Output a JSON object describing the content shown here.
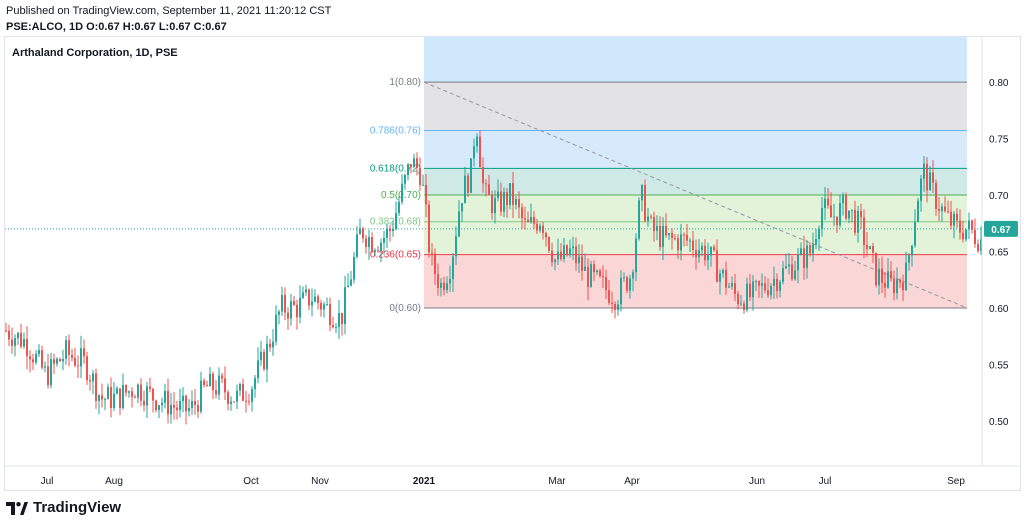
{
  "header": {
    "published": "Published on TradingView.com, September 11, 2021 11:20:12 CST",
    "symbol_line": "PSE:ALCO, 1D O:0.67 H:0.67 L:0.67 C:0.67"
  },
  "footer": {
    "brand": "TradingView"
  },
  "colors": {
    "up": "#26a69a",
    "down": "#ef5350",
    "fib_top_band": "#cfe8fb",
    "fib_grey": "#e3e3e5",
    "fib_blue": "#d6eafb",
    "fib_teal": "#cfeae6",
    "fib_green": "#e2f3da",
    "fib_red": "#fbd6d6",
    "price_badge": "#26a69a"
  },
  "chart_data": {
    "type": "candlestick",
    "title": "Arthaland Corporation, 1D, PSE",
    "ylim": [
      0.46,
      0.84
    ],
    "y_ticks": [
      0.5,
      0.55,
      0.6,
      0.65,
      0.7,
      0.75,
      0.8
    ],
    "x_ticks": [
      {
        "label": "Jul",
        "t": 42
      },
      {
        "label": "Aug",
        "t": 109
      },
      {
        "label": "Oct",
        "t": 246
      },
      {
        "label": "Nov",
        "t": 315
      },
      {
        "label": "2021",
        "t": 419
      },
      {
        "label": "Mar",
        "t": 552
      },
      {
        "label": "Apr",
        "t": 627
      },
      {
        "label": "Jun",
        "t": 752
      },
      {
        "label": "Jul",
        "t": 820
      },
      {
        "label": "Sep",
        "t": 951
      }
    ],
    "last_price": "0.67",
    "last_value": 0.67,
    "fibonacci": {
      "t_start": 419,
      "t_end": 962,
      "levels": [
        {
          "label": "1(0.80)",
          "value": 0.8,
          "color": "#787b86"
        },
        {
          "label": "0.786(0.76)",
          "value": 0.7572,
          "color": "#64b5f6"
        },
        {
          "label": "0.618(0.72)",
          "value": 0.7236,
          "color": "#089981"
        },
        {
          "label": "0.5(0.70)",
          "value": 0.7,
          "color": "#4caf50"
        },
        {
          "label": "0.382(0.68)",
          "value": 0.6764,
          "color": "#81c784"
        },
        {
          "label": "0.236(0.65)",
          "value": 0.6472,
          "color": "#f23645"
        },
        {
          "label": "0(0.60)",
          "value": 0.6,
          "color": "#787b86"
        }
      ],
      "trend_from": {
        "t": 419,
        "v": 0.8
      },
      "trend_to": {
        "t": 962,
        "v": 0.6
      }
    },
    "anchors": [
      [
        0,
        0.58
      ],
      [
        20,
        0.57
      ],
      [
        40,
        0.54
      ],
      [
        60,
        0.56
      ],
      [
        80,
        0.55
      ],
      [
        95,
        0.52
      ],
      [
        110,
        0.52
      ],
      [
        130,
        0.53
      ],
      [
        150,
        0.52
      ],
      [
        175,
        0.51
      ],
      [
        185,
        0.51
      ],
      [
        200,
        0.53
      ],
      [
        215,
        0.53
      ],
      [
        230,
        0.52
      ],
      [
        245,
        0.53
      ],
      [
        260,
        0.56
      ],
      [
        275,
        0.6
      ],
      [
        290,
        0.6
      ],
      [
        305,
        0.61
      ],
      [
        320,
        0.6
      ],
      [
        335,
        0.59
      ],
      [
        345,
        0.63
      ],
      [
        355,
        0.67
      ],
      [
        365,
        0.66
      ],
      [
        375,
        0.66
      ],
      [
        385,
        0.67
      ],
      [
        395,
        0.7
      ],
      [
        405,
        0.73
      ],
      [
        415,
        0.72
      ],
      [
        425,
        0.64
      ],
      [
        435,
        0.62
      ],
      [
        445,
        0.64
      ],
      [
        455,
        0.7
      ],
      [
        465,
        0.72
      ],
      [
        470,
        0.77
      ],
      [
        478,
        0.7
      ],
      [
        490,
        0.69
      ],
      [
        505,
        0.7
      ],
      [
        520,
        0.67
      ],
      [
        535,
        0.68
      ],
      [
        550,
        0.64
      ],
      [
        565,
        0.65
      ],
      [
        580,
        0.63
      ],
      [
        595,
        0.62
      ],
      [
        610,
        0.61
      ],
      [
        625,
        0.63
      ],
      [
        635,
        0.7
      ],
      [
        645,
        0.67
      ],
      [
        660,
        0.66
      ],
      [
        680,
        0.66
      ],
      [
        700,
        0.65
      ],
      [
        715,
        0.63
      ],
      [
        730,
        0.61
      ],
      [
        745,
        0.61
      ],
      [
        760,
        0.62
      ],
      [
        775,
        0.63
      ],
      [
        790,
        0.64
      ],
      [
        805,
        0.65
      ],
      [
        815,
        0.69
      ],
      [
        825,
        0.68
      ],
      [
        840,
        0.69
      ],
      [
        855,
        0.67
      ],
      [
        870,
        0.63
      ],
      [
        885,
        0.62
      ],
      [
        900,
        0.63
      ],
      [
        912,
        0.7
      ],
      [
        918,
        0.72
      ],
      [
        928,
        0.7
      ],
      [
        940,
        0.68
      ],
      [
        952,
        0.67
      ],
      [
        962,
        0.67
      ],
      [
        975,
        0.66
      ]
    ]
  }
}
